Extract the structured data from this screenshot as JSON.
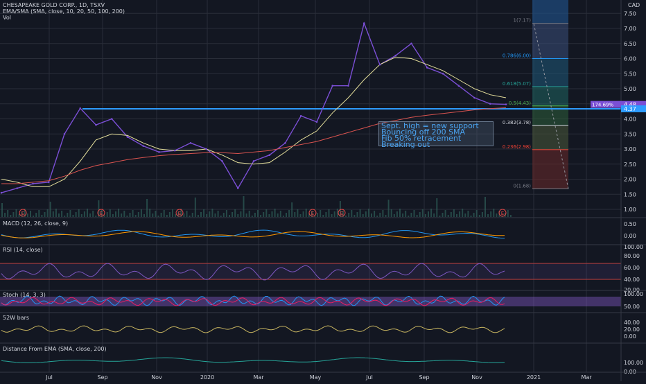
{
  "header": {
    "title": "CHESAPEAKE GOLD CORP., 1D, TSXV",
    "ema_legend": "EMA/SMA (SMA, close, 10, 20, 50, 100, 200)",
    "vol_legend": "Vol",
    "currency": "CAD"
  },
  "price_axis": [
    "7.50",
    "7.00",
    "6.50",
    "6.00",
    "5.50",
    "5.00",
    "4.50",
    "4.00",
    "3.50",
    "3.00",
    "2.50",
    "2.00",
    "1.50",
    "1.00"
  ],
  "price_tags": {
    "last": "4.48",
    "sma": "4.37",
    "label": "174.69%"
  },
  "time_axis": [
    "Jul",
    "Sep",
    "Nov",
    "2020",
    "Mar",
    "May",
    "Jul",
    "Sep",
    "Nov",
    "2021",
    "Mar"
  ],
  "earnings_marker": "E",
  "fib": {
    "levels": [
      {
        "label": "1(7.17)",
        "value": 7.17,
        "color": "#787b86"
      },
      {
        "label": "0.786(6.00)",
        "value": 6.0,
        "color": "#2196f3"
      },
      {
        "label": "0.618(5.07)",
        "value": 5.07,
        "color": "#26a69a"
      },
      {
        "label": "0.5(4.43)",
        "value": 4.43,
        "color": "#4caf50"
      },
      {
        "label": "0.382(3.78)",
        "value": 3.78,
        "color": "#d1d4dc"
      },
      {
        "label": "0.236(2.98)",
        "value": 2.98,
        "color": "#f44336"
      },
      {
        "label": "0(1.68)",
        "value": 1.68,
        "color": "#787b86"
      }
    ]
  },
  "annotation": [
    "Sept. high = new support",
    "Bouncing off 200 SMA",
    "Fib 50% retracement",
    "Breaking out"
  ],
  "panes": [
    {
      "legend": "MACD (12, 26, close, 9)",
      "ticks": [
        "0.50",
        "0.00"
      ]
    },
    {
      "legend": "RSI (14, close)",
      "ticks": [
        "100.00",
        "80.00",
        "60.00",
        "40.00",
        "20.00"
      ]
    },
    {
      "legend": "Stoch (14, 3, 3)",
      "ticks": [
        "100.00",
        "50.00"
      ]
    },
    {
      "legend": "52W bars",
      "ticks": [
        "40.00",
        "20.00",
        "0.00"
      ]
    },
    {
      "legend": "Distance From EMA (SMA, close, 200)",
      "ticks": [
        "100.00",
        "0.00"
      ]
    }
  ],
  "colors": {
    "price": "#7b4fd6",
    "sma50": "#e6e09c",
    "sma200": "#d9534f",
    "support": "#2e9bff",
    "grid": "#2a2e39",
    "bg": "#131722"
  },
  "chart_data": {
    "type": "line",
    "title": "CHESAPEAKE GOLD CORP., 1D, TSXV",
    "ylim": [
      0.7,
      7.8
    ],
    "x": [
      "May",
      "Jun",
      "Jul",
      "Aug",
      "Aug",
      "Aug",
      "Sep",
      "Sep",
      "Oct",
      "Nov",
      "Dec",
      "Jan",
      "Feb",
      "Mar",
      "Mar",
      "Apr",
      "Apr",
      "May",
      "Jun",
      "Jun",
      "Jun",
      "Jul",
      "Jul",
      "Aug",
      "Aug",
      "Aug",
      "Sep",
      "Sep",
      "Oct",
      "Oct",
      "Nov",
      "Nov",
      "Nov"
    ],
    "series": [
      {
        "values": [
          1.55,
          1.7,
          1.85,
          1.9,
          3.5,
          4.35,
          3.8,
          4.0,
          3.4,
          3.1,
          2.9,
          2.95,
          3.2,
          3.0,
          2.6,
          1.7,
          2.6,
          2.8,
          3.2,
          4.1,
          3.9,
          5.1,
          5.1,
          7.17,
          5.8,
          6.1,
          6.5,
          5.7,
          5.5,
          5.1,
          4.7,
          4.5,
          4.48
        ]
      },
      {
        "values": [
          2.0,
          1.9,
          1.75,
          1.75,
          2.0,
          2.6,
          3.3,
          3.5,
          3.45,
          3.2,
          3.0,
          2.95,
          2.95,
          3.0,
          2.8,
          2.55,
          2.5,
          2.55,
          2.9,
          3.3,
          3.6,
          4.2,
          4.7,
          5.3,
          5.8,
          6.05,
          6.0,
          5.8,
          5.6,
          5.3,
          5.0,
          4.8,
          4.7
        ]
      },
      {
        "values": [
          1.85,
          1.85,
          1.9,
          1.95,
          2.1,
          2.3,
          2.45,
          2.55,
          2.65,
          2.72,
          2.78,
          2.82,
          2.85,
          2.88,
          2.88,
          2.85,
          2.9,
          2.95,
          3.05,
          3.15,
          3.25,
          3.4,
          3.55,
          3.7,
          3.85,
          3.95,
          4.05,
          4.12,
          4.18,
          4.24,
          4.3,
          4.34,
          4.37
        ]
      }
    ]
  }
}
